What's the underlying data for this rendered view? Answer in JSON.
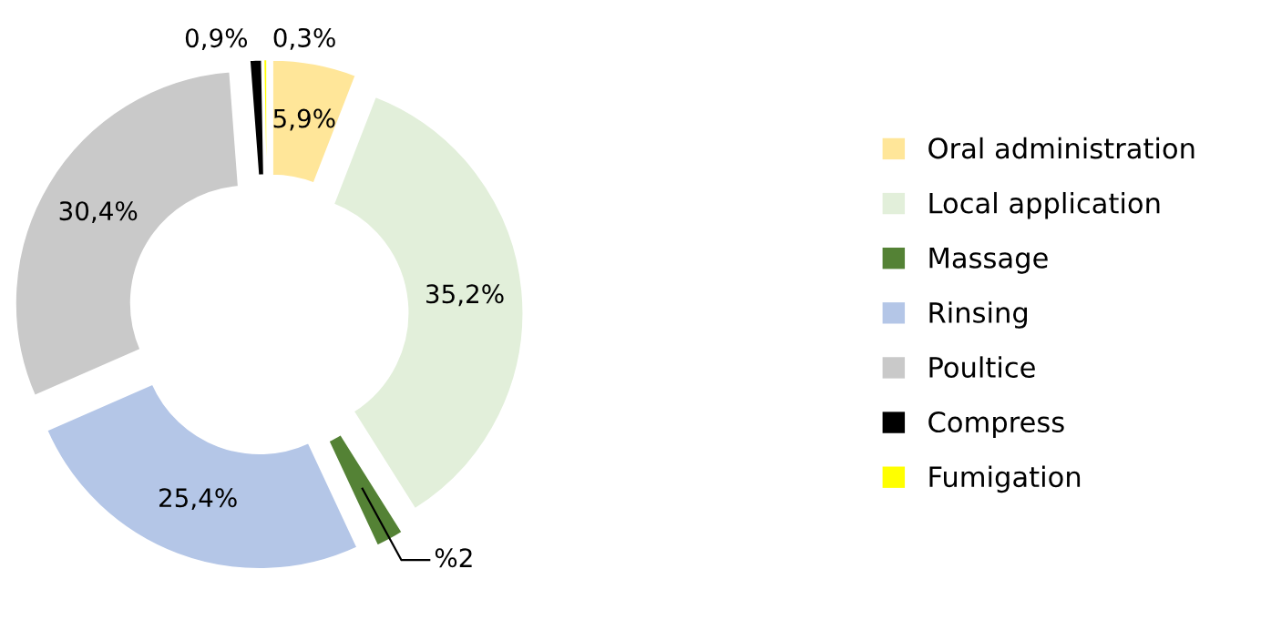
{
  "chart_data": {
    "type": "donut",
    "categories": [
      "Oral administration",
      "Local application",
      "Massage",
      "Rinsing",
      "Poultice",
      "Compress",
      "Fumigation"
    ],
    "values": [
      5.9,
      35.2,
      2,
      25.4,
      30.4,
      0.9,
      0.3
    ],
    "value_labels": [
      "5,9%",
      "35,2%",
      "%2",
      "25,4%",
      "30,4%",
      "0,9%",
      "0,3%"
    ],
    "colors": [
      "#ffe699",
      "#e2efda",
      "#548235",
      "#b4c6e7",
      "#c9c9c9",
      "#000000",
      "#ffff00"
    ],
    "legend": "right"
  }
}
